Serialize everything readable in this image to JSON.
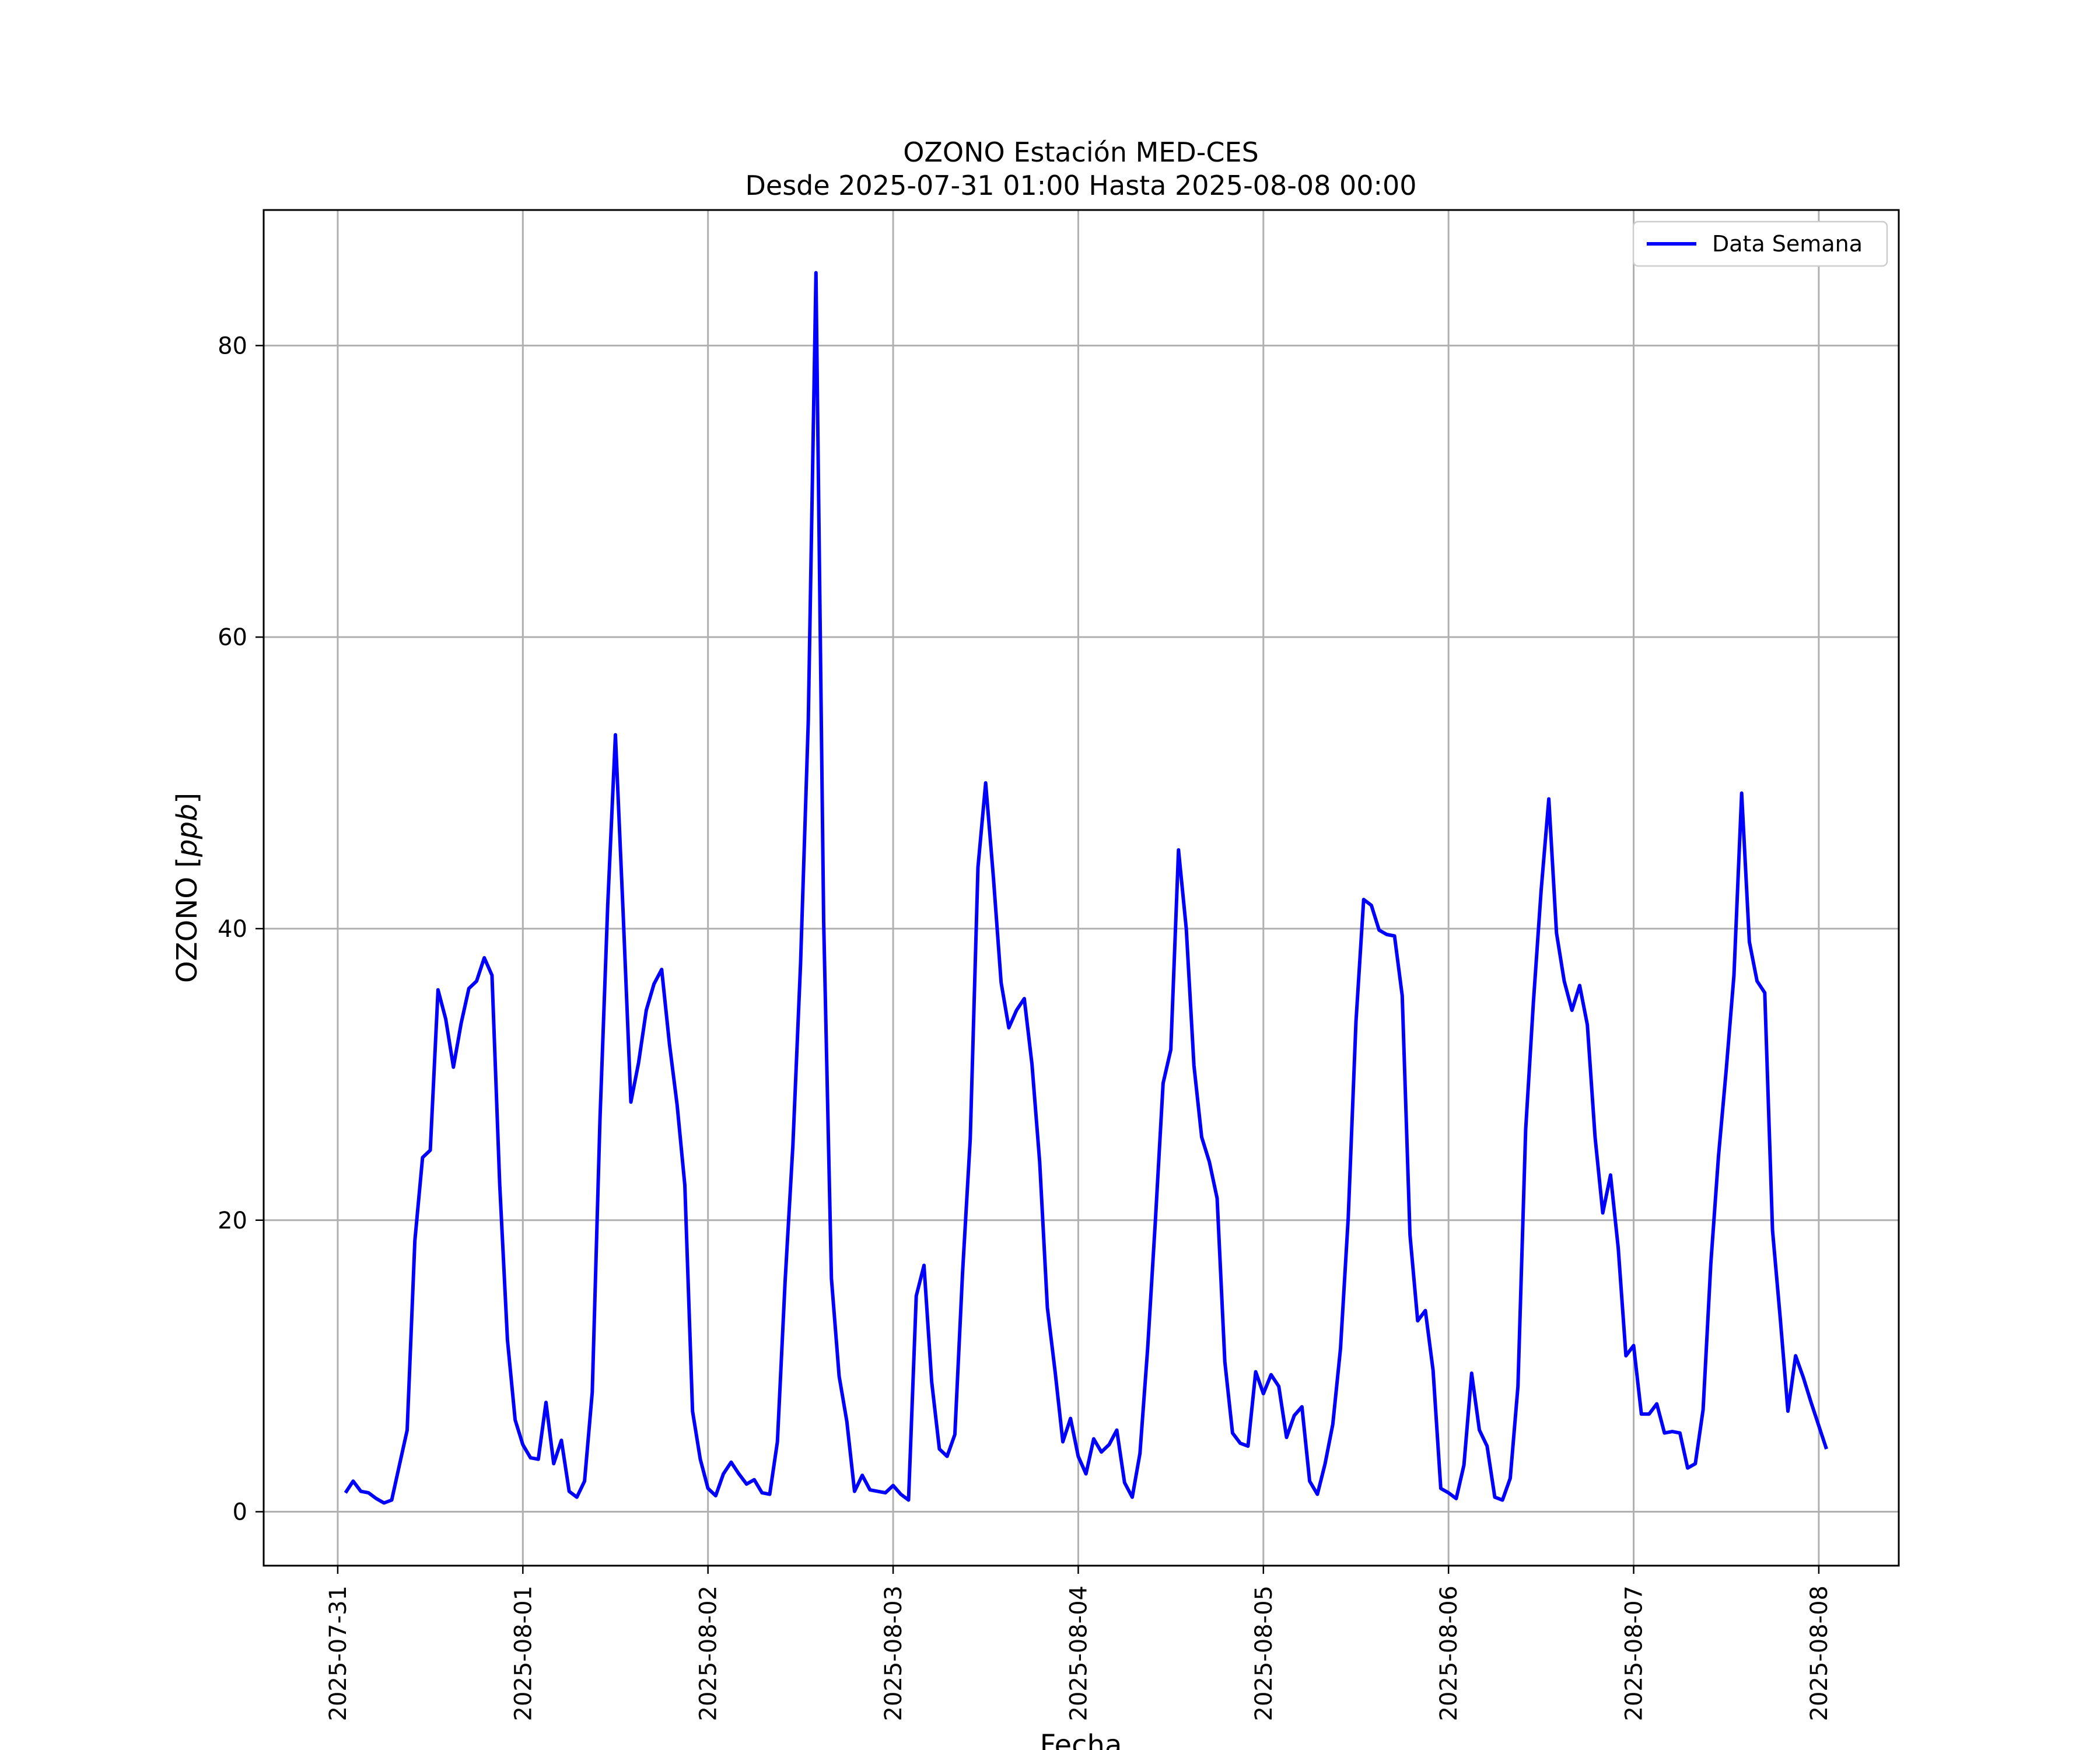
{
  "chart_data": {
    "type": "line",
    "title": "OZONO Estación MED-CES",
    "subtitle": "Desde 2025-07-31 01:00 Hasta 2025-08-08 00:00",
    "xlabel": "Fecha",
    "ylabel": "OZONO [ppb]",
    "ylabel_prefix": "OZONO [",
    "ylabel_unit": "ppb",
    "ylabel_suffix": "]",
    "xlim": [
      "2025-07-30 14:24",
      "2025-08-08 10:22"
    ],
    "ylim": [
      -3.7,
      89.3
    ],
    "x_ticks": [
      "2025-07-31",
      "2025-08-01",
      "2025-08-02",
      "2025-08-03",
      "2025-08-04",
      "2025-08-05",
      "2025-08-06",
      "2025-08-07",
      "2025-08-08"
    ],
    "y_ticks": [
      0,
      20,
      40,
      60,
      80
    ],
    "y_tick_labels": [
      "0",
      "20",
      "40",
      "60",
      "80"
    ],
    "grid": true,
    "legend": {
      "position": "top-right"
    },
    "line_color": "#0000ff",
    "series": [
      {
        "name": "Data Semana",
        "color": "#0000ff",
        "start": "2025-07-31 01:00",
        "interval_hours": 1,
        "values": [
          1.3,
          2.1,
          1.4,
          1.3,
          0.9,
          0.6,
          0.8,
          3.2,
          5.6,
          18.6,
          24.3,
          24.8,
          35.8,
          33.8,
          30.5,
          33.5,
          35.9,
          36.4,
          38.0,
          36.8,
          22.5,
          11.8,
          6.3,
          4.6,
          3.7,
          3.6,
          7.5,
          3.3,
          4.9,
          1.4,
          1.0,
          2.1,
          8.2,
          27.0,
          41.6,
          53.3,
          41.1,
          28.1,
          30.8,
          34.4,
          36.2,
          37.2,
          32.1,
          27.9,
          22.4,
          6.9,
          3.6,
          1.6,
          1.1,
          2.6,
          3.4,
          2.6,
          1.9,
          2.2,
          1.3,
          1.2,
          4.8,
          15.8,
          25.1,
          37.6,
          54.2,
          85.0,
          40.5,
          16.0,
          9.3,
          6.2,
          1.4,
          2.5,
          1.5,
          1.4,
          1.3,
          1.8,
          1.2,
          0.8,
          14.8,
          16.9,
          8.9,
          4.3,
          3.8,
          5.3,
          16.4,
          25.6,
          44.2,
          50.0,
          43.5,
          36.3,
          33.2,
          34.4,
          35.2,
          30.7,
          24.0,
          14.0,
          9.6,
          4.8,
          6.4,
          3.8,
          2.6,
          5.0,
          4.1,
          4.6,
          5.6,
          2.0,
          1.0,
          4.0,
          11.2,
          20.0,
          29.4,
          31.7,
          45.4,
          40.0,
          30.6,
          25.7,
          24.0,
          21.5,
          10.3,
          5.4,
          4.7,
          4.5,
          9.6,
          8.1,
          9.4,
          8.6,
          5.1,
          6.6,
          7.2,
          2.1,
          1.2,
          3.3,
          6.0,
          11.2,
          20.2,
          33.6,
          42.0,
          41.6,
          39.9,
          39.6,
          39.5,
          35.4,
          19.0,
          13.1,
          13.8,
          9.7,
          1.6,
          1.3,
          0.9,
          3.2,
          9.5,
          5.6,
          4.5,
          1.0,
          0.8,
          2.3,
          8.6,
          26.2,
          34.9,
          42.6,
          48.9,
          39.7,
          36.4,
          34.4,
          36.1,
          33.4,
          25.7,
          20.5,
          23.1,
          18.1,
          10.7,
          11.4,
          6.7,
          6.7,
          7.4,
          5.4,
          5.5,
          5.4,
          3.0,
          3.3,
          7.0,
          17.0,
          24.4,
          30.3,
          36.8,
          49.3,
          39.1,
          36.4,
          35.6,
          19.3,
          13.3,
          6.9,
          10.7,
          9.2,
          7.5,
          5.9,
          4.3
        ]
      }
    ]
  }
}
